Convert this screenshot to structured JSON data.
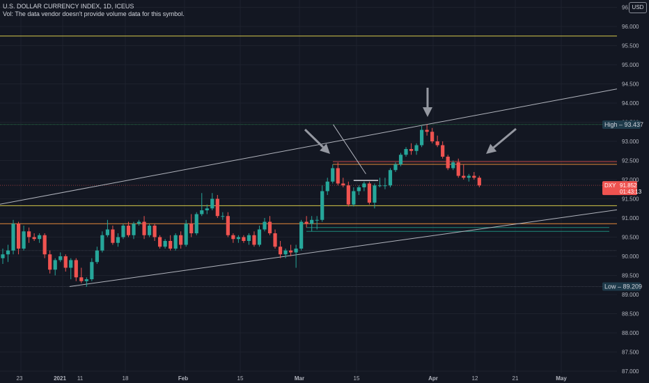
{
  "header": {
    "title": "U.S. DOLLAR CURRENCY INDEX, 1D, ICEUS",
    "volume_note": "Vol: The data vendor doesn't provide volume data for this symbol."
  },
  "currency_button": "USD",
  "price_axis": {
    "ticks": [
      "96.500",
      "96.000",
      "95.500",
      "95.000",
      "94.500",
      "94.000",
      "93.500",
      "93.000",
      "92.500",
      "92.000",
      "91.500",
      "91.000",
      "90.500",
      "90.000",
      "89.500",
      "89.000",
      "88.500",
      "88.000",
      "87.500",
      "87.000"
    ]
  },
  "time_axis": {
    "labels": [
      "23",
      "2021",
      "11",
      "18",
      "Feb",
      "15",
      "Mar",
      "15",
      "Apr",
      "12",
      "21",
      "May"
    ]
  },
  "badges": {
    "high_label": "High",
    "high_value": "93.437",
    "low_label": "Low",
    "low_value": "89.209",
    "symbol": "DXY",
    "last_price": "91.852",
    "countdown": "01:43:13"
  },
  "colors": {
    "background": "#131722",
    "grid": "#1e222d",
    "up": "#26a69a",
    "down": "#ef5350",
    "high_badge": "#1e3a4a",
    "low_badge": "#1e3a4a",
    "price_badge": "#ef5350",
    "yellow_line": "#d6c84a",
    "orange_line": "#e5893a",
    "green_line": "#2c7a4a",
    "teal_line": "#1e8a7a",
    "trendline": "#b2b5be"
  },
  "chart_data": {
    "type": "candlestick",
    "symbol": "DXY",
    "interval": "1D",
    "y_range": [
      87.0,
      96.6
    ],
    "candles": [
      {
        "o": 89.95,
        "h": 90.2,
        "l": 89.8,
        "c": 90.05
      },
      {
        "o": 90.05,
        "h": 90.3,
        "l": 89.85,
        "c": 90.15
      },
      {
        "o": 90.15,
        "h": 90.95,
        "l": 90.05,
        "c": 90.85
      },
      {
        "o": 90.85,
        "h": 90.9,
        "l": 90.05,
        "c": 90.2
      },
      {
        "o": 90.2,
        "h": 90.8,
        "l": 90.15,
        "c": 90.65
      },
      {
        "o": 90.65,
        "h": 90.75,
        "l": 90.35,
        "c": 90.5
      },
      {
        "o": 90.5,
        "h": 90.6,
        "l": 90.4,
        "c": 90.45
      },
      {
        "o": 90.45,
        "h": 90.6,
        "l": 90.35,
        "c": 90.55
      },
      {
        "o": 90.55,
        "h": 90.6,
        "l": 89.95,
        "c": 90.05
      },
      {
        "o": 90.05,
        "h": 90.15,
        "l": 89.55,
        "c": 89.65
      },
      {
        "o": 89.65,
        "h": 89.95,
        "l": 89.5,
        "c": 89.9
      },
      {
        "o": 89.9,
        "h": 90.1,
        "l": 89.85,
        "c": 90.0
      },
      {
        "o": 90.0,
        "h": 90.05,
        "l": 89.6,
        "c": 89.7
      },
      {
        "o": 89.7,
        "h": 89.95,
        "l": 89.4,
        "c": 89.9
      },
      {
        "o": 89.9,
        "h": 89.95,
        "l": 89.35,
        "c": 89.45
      },
      {
        "o": 89.45,
        "h": 89.7,
        "l": 89.3,
        "c": 89.35
      },
      {
        "o": 89.35,
        "h": 89.45,
        "l": 89.2,
        "c": 89.4
      },
      {
        "o": 89.4,
        "h": 89.95,
        "l": 89.35,
        "c": 89.85
      },
      {
        "o": 89.85,
        "h": 90.25,
        "l": 89.8,
        "c": 90.15
      },
      {
        "o": 90.15,
        "h": 90.65,
        "l": 90.1,
        "c": 90.55
      },
      {
        "o": 90.55,
        "h": 90.95,
        "l": 90.5,
        "c": 90.7
      },
      {
        "o": 90.7,
        "h": 90.8,
        "l": 90.3,
        "c": 90.35
      },
      {
        "o": 90.35,
        "h": 90.6,
        "l": 90.25,
        "c": 90.5
      },
      {
        "o": 90.5,
        "h": 90.85,
        "l": 90.45,
        "c": 90.8
      },
      {
        "o": 90.8,
        "h": 90.9,
        "l": 90.5,
        "c": 90.55
      },
      {
        "o": 90.55,
        "h": 90.9,
        "l": 90.45,
        "c": 90.85
      },
      {
        "o": 90.85,
        "h": 90.95,
        "l": 90.8,
        "c": 90.9
      },
      {
        "o": 90.9,
        "h": 91.05,
        "l": 90.45,
        "c": 90.55
      },
      {
        "o": 90.55,
        "h": 90.85,
        "l": 90.5,
        "c": 90.8
      },
      {
        "o": 90.8,
        "h": 90.85,
        "l": 90.4,
        "c": 90.5
      },
      {
        "o": 90.5,
        "h": 90.55,
        "l": 90.2,
        "c": 90.25
      },
      {
        "o": 90.25,
        "h": 90.45,
        "l": 90.2,
        "c": 90.4
      },
      {
        "o": 90.4,
        "h": 90.55,
        "l": 90.15,
        "c": 90.2
      },
      {
        "o": 90.2,
        "h": 90.6,
        "l": 90.15,
        "c": 90.55
      },
      {
        "o": 90.55,
        "h": 90.65,
        "l": 90.2,
        "c": 90.3
      },
      {
        "o": 90.3,
        "h": 90.95,
        "l": 90.25,
        "c": 90.85
      },
      {
        "o": 90.85,
        "h": 91.1,
        "l": 90.5,
        "c": 90.6
      },
      {
        "o": 90.6,
        "h": 91.15,
        "l": 90.55,
        "c": 91.1
      },
      {
        "o": 91.1,
        "h": 91.65,
        "l": 91.05,
        "c": 91.2
      },
      {
        "o": 91.2,
        "h": 91.35,
        "l": 91.1,
        "c": 91.25
      },
      {
        "o": 91.25,
        "h": 91.65,
        "l": 91.2,
        "c": 91.5
      },
      {
        "o": 91.5,
        "h": 91.6,
        "l": 91.0,
        "c": 91.05
      },
      {
        "o": 91.05,
        "h": 91.15,
        "l": 90.95,
        "c": 91.05
      },
      {
        "o": 91.05,
        "h": 91.15,
        "l": 90.5,
        "c": 90.55
      },
      {
        "o": 90.55,
        "h": 90.6,
        "l": 90.35,
        "c": 90.45
      },
      {
        "o": 90.45,
        "h": 90.55,
        "l": 90.35,
        "c": 90.5
      },
      {
        "o": 90.5,
        "h": 90.55,
        "l": 90.35,
        "c": 90.4
      },
      {
        "o": 90.4,
        "h": 90.6,
        "l": 90.3,
        "c": 90.55
      },
      {
        "o": 90.55,
        "h": 90.65,
        "l": 90.25,
        "c": 90.3
      },
      {
        "o": 90.3,
        "h": 90.8,
        "l": 90.25,
        "c": 90.7
      },
      {
        "o": 90.7,
        "h": 91.0,
        "l": 90.65,
        "c": 90.9
      },
      {
        "o": 90.9,
        "h": 91.05,
        "l": 90.55,
        "c": 90.6
      },
      {
        "o": 90.6,
        "h": 90.7,
        "l": 90.2,
        "c": 90.25
      },
      {
        "o": 90.25,
        "h": 90.4,
        "l": 89.95,
        "c": 90.05
      },
      {
        "o": 90.05,
        "h": 90.2,
        "l": 89.95,
        "c": 90.15
      },
      {
        "o": 90.15,
        "h": 90.3,
        "l": 90.0,
        "c": 90.1
      },
      {
        "o": 90.1,
        "h": 90.3,
        "l": 89.7,
        "c": 90.2
      },
      {
        "o": 90.2,
        "h": 90.95,
        "l": 90.15,
        "c": 90.9
      },
      {
        "o": 90.9,
        "h": 91.05,
        "l": 90.75,
        "c": 90.85
      },
      {
        "o": 90.85,
        "h": 91.05,
        "l": 90.65,
        "c": 90.95
      },
      {
        "o": 90.95,
        "h": 91.05,
        "l": 90.7,
        "c": 90.95
      },
      {
        "o": 90.95,
        "h": 91.85,
        "l": 90.9,
        "c": 91.7
      },
      {
        "o": 91.7,
        "h": 92.05,
        "l": 91.6,
        "c": 91.95
      },
      {
        "o": 91.95,
        "h": 92.4,
        "l": 91.9,
        "c": 92.3
      },
      {
        "o": 92.3,
        "h": 92.45,
        "l": 91.85,
        "c": 91.9
      },
      {
        "o": 91.9,
        "h": 92.05,
        "l": 91.8,
        "c": 91.85
      },
      {
        "o": 91.85,
        "h": 91.95,
        "l": 91.3,
        "c": 91.35
      },
      {
        "o": 91.35,
        "h": 91.8,
        "l": 91.3,
        "c": 91.7
      },
      {
        "o": 91.7,
        "h": 91.85,
        "l": 91.6,
        "c": 91.8
      },
      {
        "o": 91.8,
        "h": 91.95,
        "l": 91.7,
        "c": 91.9
      },
      {
        "o": 91.9,
        "h": 91.95,
        "l": 91.35,
        "c": 91.4
      },
      {
        "o": 91.4,
        "h": 91.9,
        "l": 91.25,
        "c": 91.85
      },
      {
        "o": 91.85,
        "h": 92.05,
        "l": 91.8,
        "c": 91.85
      },
      {
        "o": 91.85,
        "h": 92.05,
        "l": 91.75,
        "c": 91.85
      },
      {
        "o": 91.85,
        "h": 92.3,
        "l": 91.8,
        "c": 92.25
      },
      {
        "o": 92.25,
        "h": 92.45,
        "l": 92.2,
        "c": 92.4
      },
      {
        "o": 92.4,
        "h": 92.7,
        "l": 92.35,
        "c": 92.65
      },
      {
        "o": 92.65,
        "h": 92.85,
        "l": 92.6,
        "c": 92.8
      },
      {
        "o": 92.8,
        "h": 92.95,
        "l": 92.65,
        "c": 92.75
      },
      {
        "o": 92.75,
        "h": 92.95,
        "l": 92.65,
        "c": 92.9
      },
      {
        "o": 92.9,
        "h": 93.4,
        "l": 92.85,
        "c": 93.3
      },
      {
        "o": 93.3,
        "h": 93.44,
        "l": 93.15,
        "c": 93.25
      },
      {
        "o": 93.25,
        "h": 93.35,
        "l": 92.95,
        "c": 93.0
      },
      {
        "o": 93.0,
        "h": 93.15,
        "l": 92.85,
        "c": 92.9
      },
      {
        "o": 92.9,
        "h": 93.0,
        "l": 92.55,
        "c": 92.6
      },
      {
        "o": 92.6,
        "h": 92.65,
        "l": 92.25,
        "c": 92.3
      },
      {
        "o": 92.3,
        "h": 92.5,
        "l": 92.25,
        "c": 92.45
      },
      {
        "o": 92.45,
        "h": 92.55,
        "l": 92.05,
        "c": 92.1
      },
      {
        "o": 92.1,
        "h": 92.4,
        "l": 92.0,
        "c": 92.05
      },
      {
        "o": 92.05,
        "h": 92.15,
        "l": 91.95,
        "c": 92.1
      },
      {
        "o": 92.1,
        "h": 92.2,
        "l": 92.0,
        "c": 92.05
      },
      {
        "o": 92.05,
        "h": 92.1,
        "l": 91.8,
        "c": 91.85
      }
    ],
    "horizontal_levels": [
      {
        "price": 95.75,
        "color": "yellow"
      },
      {
        "price": 93.44,
        "color": "green"
      },
      {
        "price": 92.47,
        "color": "red"
      },
      {
        "price": 92.4,
        "color": "orange"
      },
      {
        "price": 91.32,
        "color": "yellow"
      },
      {
        "price": 90.85,
        "color": "orange"
      },
      {
        "price": 90.75,
        "color": "teal"
      },
      {
        "price": 90.65,
        "color": "teal"
      },
      {
        "price": 90.15,
        "color": "grey"
      },
      {
        "price": 89.21,
        "color": "grey"
      }
    ],
    "trendlines": [
      {
        "from": {
          "bar": -1,
          "price": 91.35
        },
        "to": {
          "bar": 153,
          "price": 94.42
        }
      },
      {
        "from": {
          "bar": 16.5,
          "price": 89.21
        },
        "to": {
          "bar": 153,
          "price": 91.25
        }
      },
      {
        "from": {
          "bar": 81,
          "price": 93.44
        },
        "to": {
          "bar": 89,
          "price": 92.15
        }
      },
      {
        "from": {
          "bar": 86,
          "price": 91.98
        },
        "to": {
          "bar": 92,
          "price": 91.98
        }
      }
    ],
    "annotations": [
      {
        "type": "arrow-down",
        "bar": 81,
        "price": 93.95
      },
      {
        "type": "arrow-down-right",
        "bar": 61.5,
        "price": 92.85
      },
      {
        "type": "arrow-down-left",
        "bar": 93,
        "price": 92.55
      }
    ]
  }
}
